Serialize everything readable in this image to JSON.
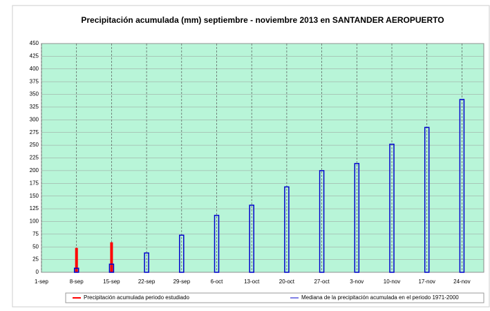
{
  "chart_data": {
    "type": "bar",
    "title": "Precipitación acumulada (mm) septiembre - noviembre 2013 en SANTANDER AEROPUERTO",
    "categories": [
      "1-sep",
      "8-sep",
      "15-sep",
      "22-sep",
      "29-sep",
      "6-oct",
      "13-oct",
      "20-oct",
      "27-oct",
      "3-nov",
      "10-nov",
      "17-nov",
      "24-nov"
    ],
    "series": [
      {
        "name": "Precipitación acumulada periodo estudiado",
        "color": "#ff0000",
        "style": "filled",
        "values": [
          null,
          48,
          59,
          null,
          null,
          null,
          null,
          null,
          null,
          null,
          null,
          null,
          null
        ]
      },
      {
        "name": "Mediana de la precipitación acumulada en el periodo 1971-2000",
        "color": "#0000cc",
        "style": "outline",
        "values": [
          null,
          8,
          16,
          38,
          73,
          112,
          132,
          168,
          200,
          214,
          252,
          285,
          340
        ]
      }
    ],
    "ylim": [
      0,
      450
    ],
    "yticks": [
      0,
      25,
      50,
      75,
      100,
      125,
      150,
      175,
      200,
      225,
      250,
      275,
      300,
      325,
      350,
      375,
      400,
      425,
      450
    ],
    "grid": true,
    "legend": "bottom",
    "background": "#b8f5d8"
  }
}
